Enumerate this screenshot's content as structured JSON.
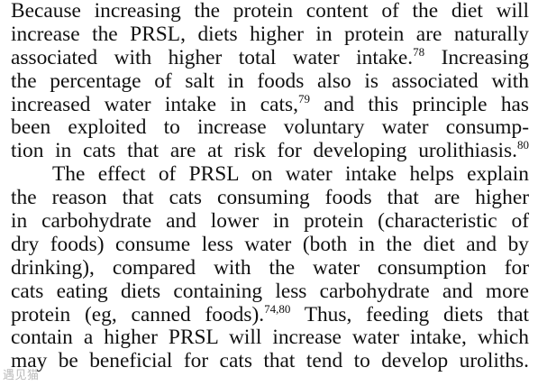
{
  "lines": [
    {
      "text": "Because increasing the protein content of the diet will",
      "sup": ""
    },
    {
      "text": "increase the PRSL, diets higher in protein are naturally",
      "sup": ""
    },
    {
      "text": "associated with higher total water intake.",
      "sup": "78",
      "tail": " Increasing"
    },
    {
      "text": "the percentage of salt in foods also is associated with",
      "sup": ""
    },
    {
      "text": "increased water intake in cats,",
      "sup": "79",
      "tail": " and this principle has"
    },
    {
      "text": "been exploited to increase voluntary water consump-",
      "sup": ""
    },
    {
      "text": "tion in cats that are at risk for developing urolithiasis.",
      "sup": "80"
    },
    {
      "text": "The effect of PRSL on water intake helps explain",
      "sup": ""
    },
    {
      "text": "the reason that cats consuming foods that are higher",
      "sup": ""
    },
    {
      "text": "in carbohydrate and lower in protein (characteristic of",
      "sup": ""
    },
    {
      "text": "dry foods) consume less water (both in the diet and by",
      "sup": ""
    },
    {
      "text": "drinking), compared with the water consumption for",
      "sup": ""
    },
    {
      "text": "cats eating diets containing less carbohydrate and more",
      "sup": ""
    },
    {
      "text": "protein (eg, canned foods).",
      "sup": "74,80",
      "tail": " Thus, feeding diets that"
    },
    {
      "text": "contain a higher PRSL will increase water intake, which",
      "sup": ""
    },
    {
      "text": "may be beneficial for cats that tend to develop uroliths.",
      "sup": ""
    }
  ],
  "watermark": "遇见猫"
}
